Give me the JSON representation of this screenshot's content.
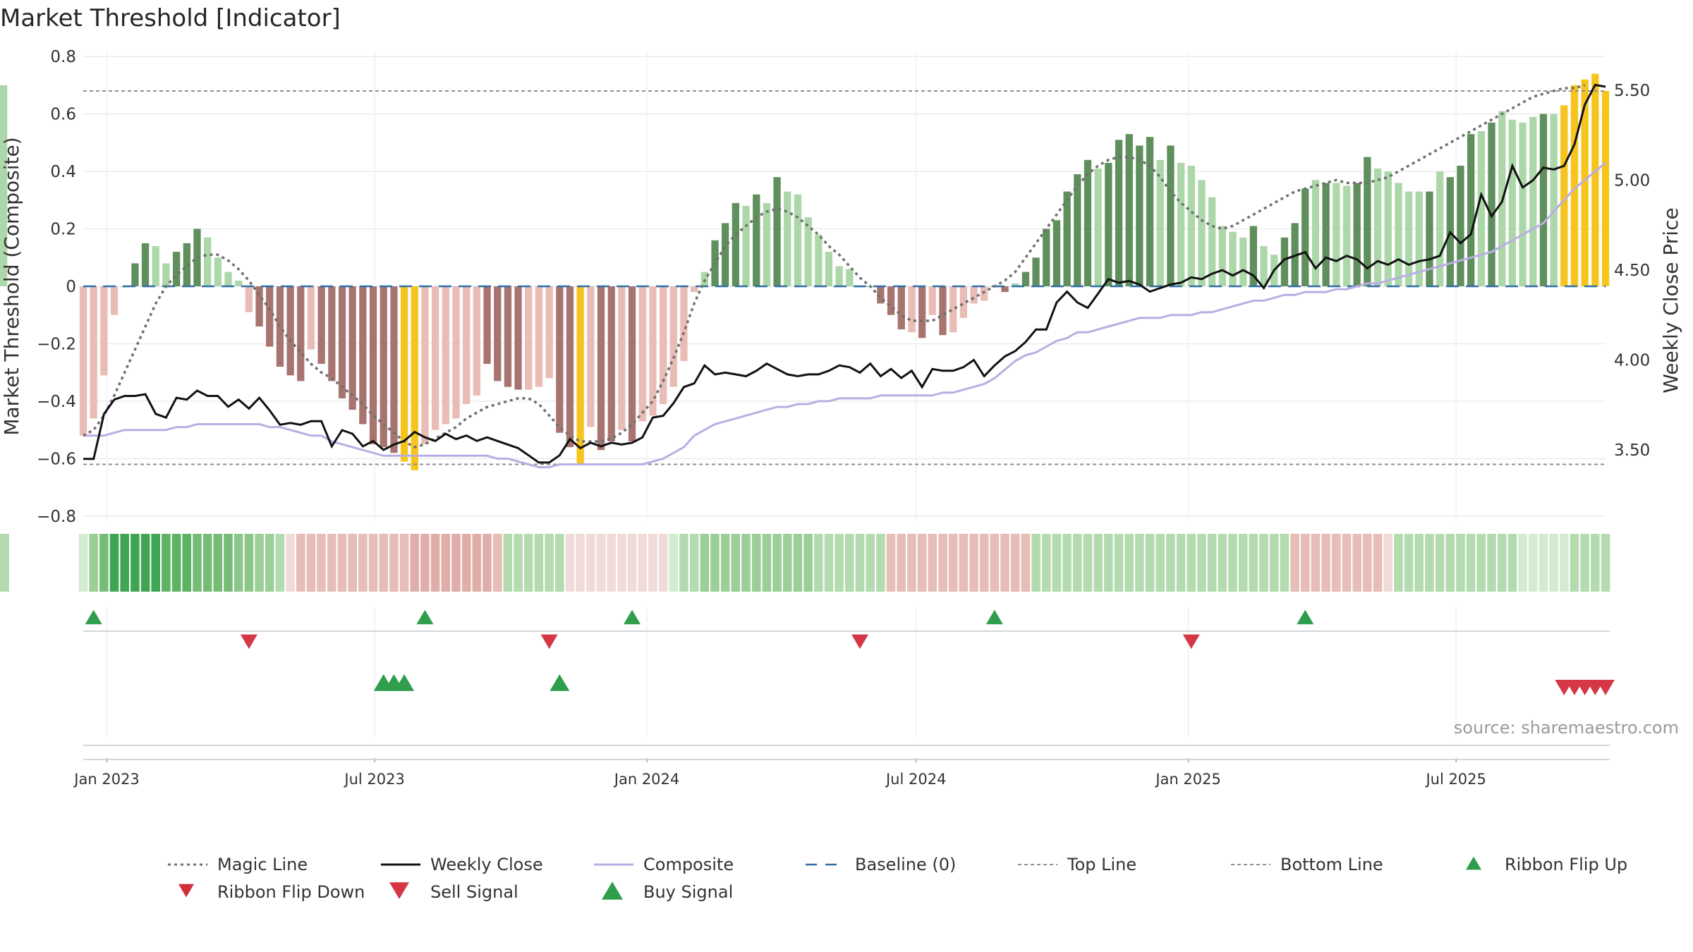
{
  "title": "Market Threshold [Indicator]",
  "source": "source: sharemaestro.com",
  "colors": {
    "bar_up_strong": "#5f8f5c",
    "bar_up_weak": "#acd7a8",
    "bar_down_strong": "#a87470",
    "bar_down_weak": "#e9bcb6",
    "bar_extreme": "#f6c41c",
    "magic": "#707070",
    "close": "#111111",
    "composite": "#b9aee3",
    "baseline": "#2f6ea6",
    "threshold": "#8f8f8f",
    "signal_up": "#2e9e4c",
    "signal_down": "#d63744",
    "ribbon_green": "#3da65a",
    "ribbon_red": "#e0a09c"
  },
  "chart_data": {
    "type": "bar",
    "x": [
      "2022-12-16",
      "2022-12-23",
      "2022-12-30",
      "2023-01-06",
      "2023-01-13",
      "2023-01-20",
      "2023-01-27",
      "2023-02-03",
      "2023-02-10",
      "2023-02-17",
      "2023-02-24",
      "2023-03-03",
      "2023-03-10",
      "2023-03-17",
      "2023-03-24",
      "2023-03-31",
      "2023-04-07",
      "2023-04-14",
      "2023-04-21",
      "2023-04-28",
      "2023-05-05",
      "2023-05-12",
      "2023-05-19",
      "2023-05-26",
      "2023-06-02",
      "2023-06-09",
      "2023-06-16",
      "2023-06-23",
      "2023-06-30",
      "2023-07-07",
      "2023-07-14",
      "2023-07-21",
      "2023-07-28",
      "2023-08-04",
      "2023-08-11",
      "2023-08-18",
      "2023-08-25",
      "2023-09-01",
      "2023-09-08",
      "2023-09-15",
      "2023-09-22",
      "2023-09-29",
      "2023-10-06",
      "2023-10-13",
      "2023-10-20",
      "2023-10-27",
      "2023-11-03",
      "2023-11-10",
      "2023-11-17",
      "2023-11-24",
      "2023-12-01",
      "2023-12-08",
      "2023-12-15",
      "2023-12-22",
      "2023-12-29",
      "2024-01-05",
      "2024-01-12",
      "2024-01-19",
      "2024-01-26",
      "2024-02-02",
      "2024-02-09",
      "2024-02-16",
      "2024-02-23",
      "2024-03-01",
      "2024-03-08",
      "2024-03-15",
      "2024-03-22",
      "2024-03-29",
      "2024-04-05",
      "2024-04-12",
      "2024-04-19",
      "2024-04-26",
      "2024-05-03",
      "2024-05-10",
      "2024-05-17",
      "2024-05-24",
      "2024-05-31",
      "2024-06-07",
      "2024-06-14",
      "2024-06-21",
      "2024-06-28",
      "2024-07-05",
      "2024-07-12",
      "2024-07-19",
      "2024-07-26",
      "2024-08-02",
      "2024-08-09",
      "2024-08-16",
      "2024-08-23",
      "2024-08-30",
      "2024-09-06",
      "2024-09-13",
      "2024-09-20",
      "2024-09-27",
      "2024-10-04",
      "2024-10-11",
      "2024-10-18",
      "2024-10-25",
      "2024-11-01",
      "2024-11-08",
      "2024-11-15",
      "2024-11-22",
      "2024-11-29",
      "2024-12-06",
      "2024-12-13",
      "2024-12-20",
      "2024-12-27",
      "2025-01-03",
      "2025-01-10",
      "2025-01-17",
      "2025-01-24",
      "2025-01-31",
      "2025-02-07",
      "2025-02-14",
      "2025-02-21",
      "2025-02-28",
      "2025-03-07",
      "2025-03-14",
      "2025-03-21",
      "2025-03-28",
      "2025-04-04",
      "2025-04-11",
      "2025-04-18",
      "2025-04-25",
      "2025-05-02",
      "2025-05-09",
      "2025-05-16",
      "2025-05-23",
      "2025-05-30",
      "2025-06-06",
      "2025-06-13",
      "2025-06-20",
      "2025-06-27",
      "2025-07-04",
      "2025-07-11",
      "2025-07-18",
      "2025-07-25",
      "2025-08-01",
      "2025-08-08",
      "2025-08-15",
      "2025-08-22",
      "2025-08-29",
      "2025-09-05",
      "2025-09-12",
      "2025-09-19",
      "2025-09-26",
      "2025-10-03",
      "2025-10-10"
    ],
    "composite_bars": [
      -0.52,
      -0.46,
      -0.31,
      -0.1,
      0.0,
      0.08,
      0.15,
      0.14,
      0.08,
      0.12,
      0.15,
      0.2,
      0.17,
      0.1,
      0.05,
      0.02,
      -0.09,
      -0.14,
      -0.21,
      -0.28,
      -0.31,
      -0.33,
      -0.22,
      -0.27,
      -0.33,
      -0.39,
      -0.43,
      -0.48,
      -0.55,
      -0.56,
      -0.58,
      -0.61,
      -0.64,
      -0.55,
      -0.5,
      -0.48,
      -0.46,
      -0.41,
      -0.38,
      -0.27,
      -0.33,
      -0.35,
      -0.36,
      -0.36,
      -0.35,
      -0.32,
      -0.51,
      -0.56,
      -0.62,
      -0.49,
      -0.57,
      -0.54,
      -0.5,
      -0.54,
      -0.47,
      -0.45,
      -0.41,
      -0.35,
      -0.26,
      -0.02,
      0.05,
      0.16,
      0.22,
      0.29,
      0.28,
      0.32,
      0.29,
      0.38,
      0.33,
      0.32,
      0.24,
      0.18,
      0.12,
      0.07,
      0.06,
      0.0,
      0.0,
      -0.06,
      -0.1,
      -0.15,
      -0.16,
      -0.18,
      -0.1,
      -0.17,
      -0.16,
      -0.11,
      -0.06,
      -0.05,
      0.0,
      -0.02,
      0.01,
      0.05,
      0.1,
      0.2,
      0.23,
      0.33,
      0.39,
      0.44,
      0.41,
      0.43,
      0.51,
      0.53,
      0.49,
      0.52,
      0.44,
      0.49,
      0.43,
      0.42,
      0.37,
      0.31,
      0.21,
      0.19,
      0.17,
      0.21,
      0.14,
      0.11,
      0.17,
      0.22,
      0.34,
      0.37,
      0.36,
      0.36,
      0.35,
      0.36,
      0.45,
      0.41,
      0.4,
      0.36,
      0.33,
      0.33,
      0.33,
      0.4,
      0.38,
      0.42,
      0.53,
      0.54,
      0.57,
      0.61,
      0.58,
      0.57,
      0.59,
      0.6,
      0.6,
      0.63,
      0.7,
      0.72,
      0.74,
      0.68,
      0.7
    ],
    "bar_styles": [
      "dw",
      "dw",
      "dw",
      "dw",
      "uw",
      "us",
      "us",
      "uw",
      "uw",
      "us",
      "us",
      "us",
      "uw",
      "uw",
      "uw",
      "uw",
      "dw",
      "ds",
      "ds",
      "ds",
      "ds",
      "ds",
      "dw",
      "ds",
      "ds",
      "ds",
      "ds",
      "ds",
      "ds",
      "ds",
      "ds",
      "ex",
      "ex",
      "dw",
      "dw",
      "dw",
      "dw",
      "dw",
      "dw",
      "ds",
      "ds",
      "ds",
      "ds",
      "dw",
      "dw",
      "dw",
      "ds",
      "ds",
      "ex",
      "dw",
      "ds",
      "ds",
      "dw",
      "ds",
      "dw",
      "dw",
      "dw",
      "dw",
      "dw",
      "dw",
      "uw",
      "us",
      "us",
      "us",
      "uw",
      "us",
      "uw",
      "us",
      "uw",
      "uw",
      "uw",
      "uw",
      "uw",
      "uw",
      "uw",
      "uw",
      "uw",
      "ds",
      "ds",
      "ds",
      "dw",
      "ds",
      "dw",
      "ds",
      "dw",
      "dw",
      "dw",
      "dw",
      "uw",
      "ds",
      "uw",
      "us",
      "us",
      "us",
      "us",
      "us",
      "us",
      "us",
      "uw",
      "us",
      "us",
      "us",
      "us",
      "us",
      "uw",
      "us",
      "uw",
      "uw",
      "uw",
      "uw",
      "uw",
      "uw",
      "uw",
      "us",
      "uw",
      "uw",
      "us",
      "us",
      "us",
      "uw",
      "us",
      "uw",
      "uw",
      "us",
      "us",
      "uw",
      "uw",
      "uw",
      "uw",
      "uw",
      "us",
      "uw",
      "us",
      "us",
      "us",
      "uw",
      "us",
      "uw",
      "uw",
      "uw",
      "uw",
      "us",
      "uw",
      "ex",
      "ex",
      "ex",
      "ex",
      "ex"
    ],
    "magic_line": [
      -0.52,
      -0.5,
      -0.45,
      -0.38,
      -0.3,
      -0.22,
      -0.14,
      -0.06,
      0.0,
      0.04,
      0.07,
      0.1,
      0.11,
      0.11,
      0.09,
      0.06,
      0.02,
      -0.03,
      -0.08,
      -0.14,
      -0.19,
      -0.23,
      -0.27,
      -0.3,
      -0.32,
      -0.35,
      -0.38,
      -0.41,
      -0.45,
      -0.48,
      -0.51,
      -0.54,
      -0.56,
      -0.55,
      -0.53,
      -0.51,
      -0.49,
      -0.46,
      -0.44,
      -0.42,
      -0.41,
      -0.4,
      -0.39,
      -0.39,
      -0.41,
      -0.45,
      -0.49,
      -0.52,
      -0.54,
      -0.54,
      -0.54,
      -0.53,
      -0.51,
      -0.48,
      -0.44,
      -0.4,
      -0.33,
      -0.25,
      -0.16,
      -0.06,
      0.02,
      0.08,
      0.14,
      0.18,
      0.21,
      0.24,
      0.26,
      0.27,
      0.26,
      0.24,
      0.21,
      0.18,
      0.14,
      0.11,
      0.07,
      0.03,
      0.0,
      -0.04,
      -0.07,
      -0.1,
      -0.12,
      -0.12,
      -0.12,
      -0.1,
      -0.08,
      -0.06,
      -0.04,
      -0.02,
      0.0,
      0.02,
      0.05,
      0.1,
      0.15,
      0.2,
      0.25,
      0.3,
      0.35,
      0.39,
      0.42,
      0.44,
      0.45,
      0.45,
      0.44,
      0.42,
      0.38,
      0.33,
      0.29,
      0.26,
      0.23,
      0.21,
      0.2,
      0.21,
      0.23,
      0.25,
      0.27,
      0.29,
      0.31,
      0.33,
      0.34,
      0.35,
      0.36,
      0.37,
      0.36,
      0.36,
      0.36,
      0.37,
      0.38,
      0.4,
      0.42,
      0.44,
      0.46,
      0.48,
      0.5,
      0.52,
      0.54,
      0.56,
      0.58,
      0.6,
      0.62,
      0.64,
      0.66,
      0.67,
      0.68,
      0.69,
      0.69,
      0.7
    ],
    "weekly_close": [
      3.45,
      3.45,
      3.7,
      3.78,
      3.8,
      3.8,
      3.81,
      3.7,
      3.68,
      3.79,
      3.78,
      3.83,
      3.8,
      3.8,
      3.74,
      3.78,
      3.73,
      3.79,
      3.72,
      3.64,
      3.65,
      3.64,
      3.66,
      3.66,
      3.52,
      3.61,
      3.59,
      3.52,
      3.55,
      3.5,
      3.53,
      3.55,
      3.6,
      3.57,
      3.55,
      3.59,
      3.56,
      3.58,
      3.55,
      3.57,
      3.55,
      3.53,
      3.51,
      3.47,
      3.43,
      3.43,
      3.47,
      3.56,
      3.51,
      3.54,
      3.52,
      3.54,
      3.53,
      3.54,
      3.57,
      3.68,
      3.69,
      3.76,
      3.85,
      3.87,
      3.97,
      3.92,
      3.93,
      3.92,
      3.91,
      3.94,
      3.98,
      3.95,
      3.92,
      3.91,
      3.92,
      3.92,
      3.94,
      3.97,
      3.96,
      3.93,
      3.98,
      3.91,
      3.95,
      3.9,
      3.94,
      3.85,
      3.95,
      3.94,
      3.94,
      3.96,
      4.0,
      3.91,
      3.97,
      4.02,
      4.05,
      4.1,
      4.17,
      4.17,
      4.32,
      4.38,
      4.32,
      4.29,
      4.37,
      4.45,
      4.43,
      4.44,
      4.42,
      4.38,
      4.4,
      4.42,
      4.43,
      4.46,
      4.45,
      4.48,
      4.5,
      4.47,
      4.5,
      4.47,
      4.4,
      4.5,
      4.56,
      4.58,
      4.6,
      4.51,
      4.57,
      4.55,
      4.58,
      4.56,
      4.51,
      4.55,
      4.53,
      4.56,
      4.53,
      4.55,
      4.56,
      4.58,
      4.71,
      4.65,
      4.7,
      4.92,
      4.8,
      4.88,
      5.08,
      4.96,
      5.0,
      5.07,
      5.06,
      5.08,
      5.2,
      5.42,
      5.53,
      5.52,
      5.46,
      5.7
    ],
    "composite_line": [
      -0.52,
      -0.52,
      -0.52,
      -0.51,
      -0.5,
      -0.5,
      -0.5,
      -0.5,
      -0.5,
      -0.49,
      -0.49,
      -0.48,
      -0.48,
      -0.48,
      -0.48,
      -0.48,
      -0.48,
      -0.48,
      -0.49,
      -0.49,
      -0.5,
      -0.51,
      -0.52,
      -0.52,
      -0.54,
      -0.55,
      -0.56,
      -0.57,
      -0.58,
      -0.59,
      -0.59,
      -0.59,
      -0.59,
      -0.59,
      -0.59,
      -0.59,
      -0.59,
      -0.59,
      -0.59,
      -0.59,
      -0.6,
      -0.6,
      -0.61,
      -0.62,
      -0.63,
      -0.63,
      -0.62,
      -0.62,
      -0.62,
      -0.62,
      -0.62,
      -0.62,
      -0.62,
      -0.62,
      -0.62,
      -0.61,
      -0.6,
      -0.58,
      -0.56,
      -0.52,
      -0.5,
      -0.48,
      -0.47,
      -0.46,
      -0.45,
      -0.44,
      -0.43,
      -0.42,
      -0.42,
      -0.41,
      -0.41,
      -0.4,
      -0.4,
      -0.39,
      -0.39,
      -0.39,
      -0.39,
      -0.38,
      -0.38,
      -0.38,
      -0.38,
      -0.38,
      -0.38,
      -0.37,
      -0.37,
      -0.36,
      -0.35,
      -0.34,
      -0.32,
      -0.29,
      -0.26,
      -0.24,
      -0.23,
      -0.21,
      -0.19,
      -0.18,
      -0.16,
      -0.16,
      -0.15,
      -0.14,
      -0.13,
      -0.12,
      -0.11,
      -0.11,
      -0.11,
      -0.1,
      -0.1,
      -0.1,
      -0.09,
      -0.09,
      -0.08,
      -0.07,
      -0.06,
      -0.05,
      -0.05,
      -0.04,
      -0.03,
      -0.03,
      -0.02,
      -0.02,
      -0.02,
      -0.01,
      -0.01,
      0.0,
      0.01,
      0.01,
      0.02,
      0.03,
      0.04,
      0.05,
      0.06,
      0.07,
      0.08,
      0.09,
      0.1,
      0.11,
      0.12,
      0.14,
      0.16,
      0.18,
      0.2,
      0.22,
      0.26,
      0.3,
      0.34,
      0.37,
      0.4,
      0.43
    ],
    "ribbon": [
      1,
      3,
      5,
      7,
      7,
      7,
      7,
      7,
      6,
      6,
      6,
      5,
      5,
      5,
      5,
      4,
      4,
      3,
      3,
      2,
      -1,
      -2,
      -2,
      -2,
      -2,
      -2,
      -2,
      -2,
      -2,
      -2,
      -2,
      -2,
      -3,
      -3,
      -3,
      -3,
      -3,
      -3,
      -3,
      -3,
      -2,
      2,
      2,
      2,
      2,
      2,
      2,
      -1,
      -1,
      -1,
      -1,
      -1,
      -1,
      -1,
      -1,
      -1,
      -1,
      1,
      2,
      2,
      3,
      3,
      3,
      3,
      3,
      3,
      3,
      3,
      3,
      3,
      3,
      2,
      2,
      2,
      2,
      2,
      2,
      2,
      -2,
      -2,
      -2,
      -2,
      -2,
      -2,
      -2,
      -2,
      -2,
      -2,
      -2,
      -2,
      -2,
      -2,
      2,
      2,
      2,
      2,
      2,
      2,
      2,
      2,
      2,
      2,
      2,
      2,
      2,
      2,
      2,
      2,
      2,
      2,
      2,
      2,
      2,
      2,
      2,
      2,
      2,
      -2,
      -2,
      -2,
      -2,
      -2,
      -2,
      -2,
      -2,
      -2,
      -1,
      2,
      2,
      2,
      2,
      2,
      2,
      2,
      2,
      2,
      2,
      2,
      2,
      1,
      1,
      1,
      1,
      1,
      2,
      2,
      2,
      2,
      2,
      2,
      2,
      2,
      2,
      2,
      2,
      2,
      2
    ],
    "ribbon_flip_up": [
      "2022-12-23",
      "2023-08-04",
      "2023-12-22",
      "2024-08-23",
      "2025-03-21"
    ],
    "ribbon_flip_down": [
      "2023-04-07",
      "2023-10-27",
      "2024-05-24",
      "2025-01-03"
    ],
    "buy_signal": [
      "2023-07-07",
      "2023-07-14",
      "2023-07-21",
      "2023-11-03"
    ],
    "sell_signal": [
      "2025-09-12",
      "2025-09-19",
      "2025-09-26",
      "2025-10-03",
      "2025-10-10"
    ],
    "top_line": 0.68,
    "bottom_line": -0.62,
    "baseline": 0,
    "ylim": [
      -0.82,
      0.82
    ],
    "y2lim": [
      3.1,
      5.72
    ],
    "yticks": [
      {
        "value": -0.8,
        "label": "−0.8"
      },
      {
        "value": -0.6,
        "label": "−0.6"
      },
      {
        "value": -0.4,
        "label": "−0.4"
      },
      {
        "value": -0.2,
        "label": "−0.2"
      },
      {
        "value": 0.0,
        "label": "0"
      },
      {
        "value": 0.2,
        "label": "0.2"
      },
      {
        "value": 0.4,
        "label": "0.4"
      },
      {
        "value": 0.6,
        "label": "0.6"
      },
      {
        "value": 0.8,
        "label": "0.8"
      }
    ],
    "y2ticks": [
      {
        "value": 3.5,
        "label": "3.50"
      },
      {
        "value": 4.0,
        "label": "4.00"
      },
      {
        "value": 4.5,
        "label": "4.50"
      },
      {
        "value": 5.0,
        "label": "5.00"
      },
      {
        "value": 5.5,
        "label": "5.50"
      }
    ],
    "xticks": [
      {
        "date": "2023-01-01",
        "label": "Jan 2023"
      },
      {
        "date": "2023-07-01",
        "label": "Jul 2023"
      },
      {
        "date": "2024-01-01",
        "label": "Jan 2024"
      },
      {
        "date": "2024-07-01",
        "label": "Jul 2024"
      },
      {
        "date": "2025-01-01",
        "label": "Jan 2025"
      },
      {
        "date": "2025-07-01",
        "label": "Jul 2025"
      }
    ],
    "ylabel": "Market Threshold (Composite)",
    "y2label": "Weekly Close Price",
    "grid": true,
    "legend_position": "bottom",
    "legend": [
      {
        "label": "Magic Line",
        "kind": "magic"
      },
      {
        "label": "Weekly Close",
        "kind": "close"
      },
      {
        "label": "Composite",
        "kind": "composite"
      },
      {
        "label": "Baseline (0)",
        "kind": "baseline"
      },
      {
        "label": "Top Line",
        "kind": "threshold"
      },
      {
        "label": "Bottom Line",
        "kind": "threshold"
      },
      {
        "label": "Ribbon Flip Up",
        "kind": "flip_up"
      },
      {
        "label": "Ribbon Flip Down",
        "kind": "flip_down"
      },
      {
        "label": "Sell Signal",
        "kind": "sell"
      },
      {
        "label": "Buy Signal",
        "kind": "buy"
      }
    ]
  }
}
